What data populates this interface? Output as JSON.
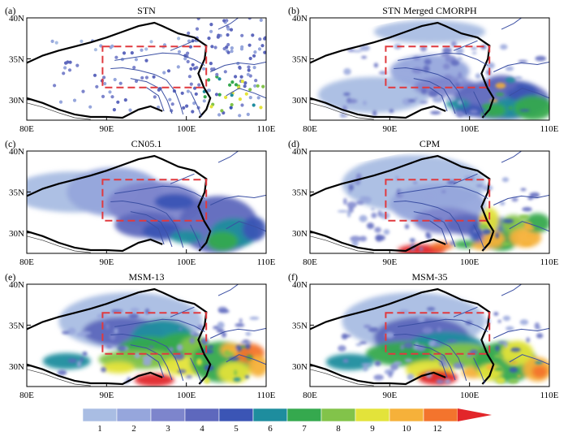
{
  "figure": {
    "panels": [
      {
        "label": "(a)",
        "title": "STN",
        "kind": "stations"
      },
      {
        "label": "(b)",
        "title": "STN Merged CMORPH",
        "kind": "merged"
      },
      {
        "label": "(c)",
        "title": "CN05.1",
        "kind": "smooth"
      },
      {
        "label": "(d)",
        "title": "CPM",
        "kind": "cpm"
      },
      {
        "label": "(e)",
        "title": "MSM-13",
        "kind": "msm13"
      },
      {
        "label": "(f)",
        "title": "MSM-35",
        "kind": "msm35"
      }
    ],
    "lon_ticks": [
      "80E",
      "90E",
      "100E",
      "110E"
    ],
    "lat_ticks": [
      "30N",
      "35N",
      "40N"
    ],
    "lon_range": [
      80,
      110
    ],
    "lat_range": [
      27.5,
      40
    ],
    "box": {
      "lon": [
        89.5,
        102.5
      ],
      "lat": [
        31.5,
        36.5
      ],
      "color": "#e0393e"
    },
    "colorbar": {
      "labels": [
        "1",
        "2",
        "3",
        "4",
        "5",
        "6",
        "7",
        "8",
        "9",
        "10",
        "12"
      ],
      "colors": [
        "#a9bde3",
        "#96a6dc",
        "#7d85cc",
        "#5e68bd",
        "#3b55b5",
        "#1e8d9e",
        "#35a94e",
        "#82c34a",
        "#e3e33a",
        "#f6b13a",
        "#f3742d",
        "#e2262a"
      ]
    }
  }
}
